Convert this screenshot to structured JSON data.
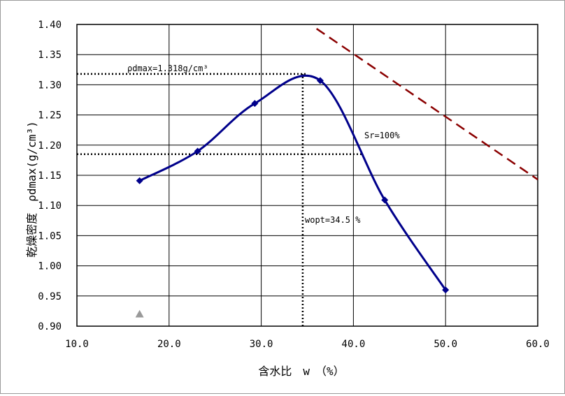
{
  "chart_data": {
    "type": "scatter",
    "xlabel": "含水比　w　（%）",
    "ylabel": "乾燥密度　ρdmax(g/cm³)",
    "xlim": [
      10.0,
      60.0
    ],
    "ylim": [
      0.9,
      1.4
    ],
    "x_ticks": [
      "10.0",
      "20.0",
      "30.0",
      "40.0",
      "50.0",
      "60.0"
    ],
    "y_ticks": [
      "0.90",
      "0.95",
      "1.00",
      "1.05",
      "1.10",
      "1.15",
      "1.20",
      "1.25",
      "1.30",
      "1.35",
      "1.40"
    ],
    "grid": true,
    "series": [
      {
        "name": "",
        "color": "#00008b",
        "marker": "diamond",
        "smooth": true,
        "x": [
          16.8,
          23.1,
          29.3,
          36.4,
          43.4,
          50.0
        ],
        "y": [
          1.141,
          1.19,
          1.269,
          1.307,
          1.109,
          0.96
        ]
      },
      {
        "name": "Sr=100%",
        "color": "#8b0000",
        "dash": true,
        "x": [
          36.0,
          60.0
        ],
        "y": [
          1.393,
          1.143
        ]
      },
      {
        "name": "",
        "color": "#999999",
        "marker": "triangle",
        "x": [
          16.8
        ],
        "y": [
          0.92
        ]
      }
    ],
    "reference_lines": [
      {
        "kind": "h",
        "y": 1.318,
        "x_from": 10.0,
        "x_to": 35.0
      },
      {
        "kind": "v",
        "x": 34.5,
        "y_from": 0.9,
        "y_to": 1.318
      },
      {
        "kind": "h",
        "y": 1.185,
        "x_from": 10.0,
        "x_to": 41.0
      }
    ],
    "annotations": [
      {
        "id": "rho",
        "text": "ρdmax=1.318g/cm³"
      },
      {
        "id": "wopt",
        "text": "wopt=34.5 %"
      },
      {
        "id": "sr",
        "text": "Sr=100%"
      }
    ]
  }
}
